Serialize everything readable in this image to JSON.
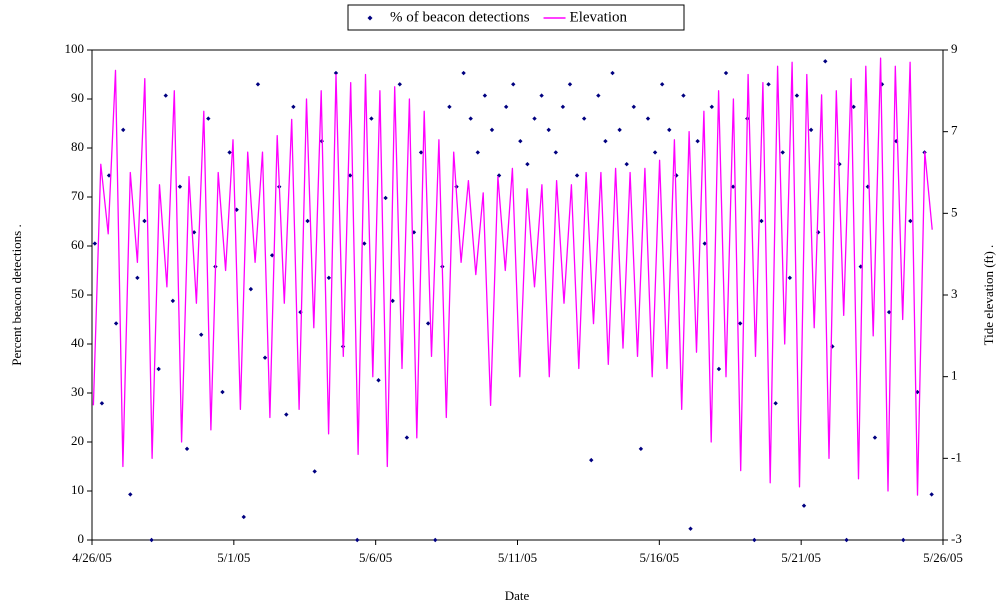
{
  "chart_data": {
    "type": "scatter",
    "x_label": "Date",
    "y_label": "Percent beacon detections .",
    "y2_label": "Tide elevation (ft) .",
    "xlim": [
      0,
      30
    ],
    "xticks": [
      {
        "value": 0,
        "label": "4/26/05"
      },
      {
        "value": 5,
        "label": "5/1/05"
      },
      {
        "value": 10,
        "label": "5/6/05"
      },
      {
        "value": 15,
        "label": "5/11/05"
      },
      {
        "value": 20,
        "label": "5/16/05"
      },
      {
        "value": 25,
        "label": "5/21/05"
      },
      {
        "value": 30,
        "label": "5/26/05"
      }
    ],
    "ylim": [
      0,
      100
    ],
    "yticks": [
      0,
      10,
      20,
      30,
      40,
      50,
      60,
      70,
      80,
      90,
      100
    ],
    "y2lim": [
      -3,
      9
    ],
    "y2ticks": [
      -3,
      -1,
      1,
      3,
      5,
      7,
      9
    ],
    "legend": "top",
    "series": [
      {
        "name": "% of beacon detections",
        "color": "#000080",
        "style": "points",
        "x": [
          0.1,
          0.35,
          0.6,
          0.85,
          1.1,
          1.35,
          1.6,
          1.85,
          2.1,
          2.35,
          2.6,
          2.85,
          3.1,
          3.35,
          3.6,
          3.85,
          4.1,
          4.35,
          4.6,
          4.85,
          5.1,
          5.35,
          5.6,
          5.85,
          6.1,
          6.35,
          6.6,
          6.85,
          7.1,
          7.35,
          7.6,
          7.85,
          8.1,
          8.35,
          8.6,
          8.85,
          9.1,
          9.35,
          9.6,
          9.85,
          10.1,
          10.35,
          10.6,
          10.85,
          11.1,
          11.35,
          11.6,
          11.85,
          12.1,
          12.35,
          12.6,
          12.85,
          13.1,
          13.35,
          13.6,
          13.85,
          14.1,
          14.35,
          14.6,
          14.85,
          15.1,
          15.35,
          15.6,
          15.85,
          16.1,
          16.35,
          16.6,
          16.85,
          17.1,
          17.35,
          17.6,
          17.85,
          18.1,
          18.35,
          18.6,
          18.85,
          19.1,
          19.35,
          19.6,
          19.85,
          20.1,
          20.35,
          20.6,
          20.85,
          21.1,
          21.35,
          21.6,
          21.85,
          22.1,
          22.35,
          22.6,
          22.85,
          23.1,
          23.35,
          23.6,
          23.85,
          24.1,
          24.35,
          24.6,
          24.85,
          25.1,
          25.35,
          25.6,
          25.85,
          26.1,
          26.35,
          26.6,
          26.85,
          27.1,
          27.35,
          27.6,
          27.85,
          28.1,
          28.35,
          28.6,
          28.85,
          29.1,
          29.35,
          29.6
        ],
        "values": [
          60.5,
          27.9,
          74.4,
          44.2,
          83.7,
          9.3,
          53.5,
          65.1,
          0,
          34.9,
          90.7,
          48.8,
          72.1,
          18.6,
          62.8,
          41.9,
          86,
          55.8,
          30.2,
          79.1,
          67.4,
          4.7,
          51.2,
          93,
          37.2,
          58.1,
          72.1,
          25.6,
          88.4,
          46.5,
          65.1,
          14,
          81.4,
          53.5,
          95.3,
          39.5,
          74.4,
          0,
          60.5,
          86,
          32.6,
          69.8,
          48.8,
          93,
          20.9,
          62.8,
          79.1,
          44.2,
          0,
          55.8,
          88.4,
          72.1,
          95.3,
          86,
          79.1,
          90.7,
          83.7,
          74.4,
          88.4,
          93,
          81.4,
          76.7,
          86,
          90.7,
          83.7,
          79.1,
          88.4,
          93,
          74.4,
          86,
          16.3,
          90.7,
          81.4,
          95.3,
          83.7,
          76.7,
          88.4,
          18.6,
          86,
          79.1,
          93,
          83.7,
          74.4,
          90.7,
          2.3,
          81.4,
          60.5,
          88.4,
          34.9,
          95.3,
          72.1,
          44.2,
          86,
          0,
          65.1,
          93,
          27.9,
          79.1,
          53.5,
          90.7,
          7,
          83.7,
          62.8,
          97.7,
          39.5,
          76.7,
          0,
          88.4,
          55.8,
          72.1,
          20.9,
          93,
          46.5,
          81.4,
          0,
          65.1,
          30.2,
          79.1,
          9.3
        ]
      },
      {
        "name": "Elevation",
        "color": "#ff00ff",
        "style": "line",
        "axis": "y2",
        "x": [
          0.05,
          0.31,
          0.57,
          0.83,
          1.09,
          1.35,
          1.6,
          1.86,
          2.12,
          2.38,
          2.64,
          2.9,
          3.16,
          3.42,
          3.68,
          3.94,
          4.19,
          4.45,
          4.71,
          4.97,
          5.23,
          5.49,
          5.75,
          6.01,
          6.27,
          6.53,
          6.78,
          7.04,
          7.3,
          7.56,
          7.82,
          8.08,
          8.34,
          8.6,
          8.86,
          9.12,
          9.38,
          9.64,
          9.9,
          10.15,
          10.41,
          10.67,
          10.93,
          11.19,
          11.45,
          11.71,
          11.97,
          12.23,
          12.49,
          12.75,
          13.01,
          13.27,
          13.53,
          13.79,
          14.05,
          14.31,
          14.57,
          14.82,
          15.08,
          15.34,
          15.6,
          15.86,
          16.12,
          16.38,
          16.64,
          16.9,
          17.16,
          17.42,
          17.68,
          17.94,
          18.2,
          18.46,
          18.72,
          18.97,
          19.23,
          19.49,
          19.75,
          20.01,
          20.27,
          20.53,
          20.79,
          21.05,
          21.31,
          21.57,
          21.83,
          22.09,
          22.35,
          22.61,
          22.87,
          23.13,
          23.39,
          23.65,
          23.91,
          24.17,
          24.42,
          24.68,
          24.94,
          25.2,
          25.46,
          25.72,
          25.98,
          26.24,
          26.5,
          26.76,
          27.02,
          27.28,
          27.54,
          27.8,
          28.06,
          28.32,
          28.58,
          28.84,
          29.1,
          29.36,
          29.62
        ],
        "values": [
          0.3,
          6.2,
          4.5,
          8.5,
          -1.2,
          6.0,
          3.8,
          8.3,
          -1.0,
          5.7,
          3.2,
          8.0,
          -0.6,
          5.9,
          2.8,
          7.5,
          -0.3,
          6.0,
          3.6,
          6.8,
          0.2,
          6.5,
          3.8,
          6.5,
          0.0,
          6.9,
          2.8,
          7.3,
          0.2,
          7.8,
          2.2,
          8.0,
          -0.4,
          8.4,
          1.5,
          8.2,
          -0.9,
          8.4,
          1.0,
          8.0,
          -1.2,
          8.1,
          1.2,
          7.8,
          -0.5,
          7.5,
          1.5,
          6.8,
          0.0,
          6.5,
          3.8,
          5.8,
          3.5,
          5.5,
          0.3,
          5.9,
          3.6,
          6.1,
          1.0,
          5.6,
          3.2,
          5.7,
          1.0,
          5.8,
          2.8,
          5.7,
          1.2,
          6.0,
          2.3,
          6.0,
          1.3,
          6.1,
          1.7,
          6.0,
          1.5,
          6.1,
          1.0,
          6.3,
          1.2,
          6.8,
          0.2,
          7.0,
          1.6,
          7.5,
          -0.6,
          8.0,
          1.0,
          7.8,
          -1.3,
          8.4,
          1.5,
          8.2,
          -1.6,
          8.6,
          1.8,
          8.7,
          -1.7,
          8.4,
          2.2,
          7.9,
          -1.0,
          8.0,
          2.5,
          8.3,
          -1.5,
          8.6,
          2.0,
          8.8,
          -1.8,
          8.6,
          2.4,
          8.7,
          -1.9,
          6.5,
          4.6
        ]
      }
    ]
  }
}
